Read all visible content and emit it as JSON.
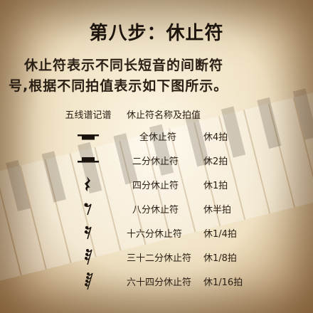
{
  "title": "第八步：休止符",
  "intro": [
    "休止符表示不同长短音的间断符",
    "号,根据不同拍值表示如下图所示。"
  ],
  "table": {
    "headers": [
      "五线谱记谱",
      "休止符名称及拍值"
    ],
    "rows": [
      {
        "icon": "whole-rest-icon",
        "name": "全休止符",
        "beats": "休4拍"
      },
      {
        "icon": "half-rest-icon",
        "name": "二分休止符",
        "beats": "休2拍"
      },
      {
        "icon": "quarter-rest-icon",
        "name": "四分休止符",
        "beats": "休1拍"
      },
      {
        "icon": "eighth-rest-icon",
        "name": "八分休止符",
        "beats": "休半拍"
      },
      {
        "icon": "sixteenth-rest-icon",
        "name": "十六分休止符",
        "beats": "休1/4拍"
      },
      {
        "icon": "thirty-second-rest-icon",
        "name": "三十二分休止符",
        "beats": "休1/8拍"
      },
      {
        "icon": "sixty-fourth-rest-icon",
        "name": "六十四分休止符",
        "beats": "休1/16拍"
      }
    ]
  }
}
